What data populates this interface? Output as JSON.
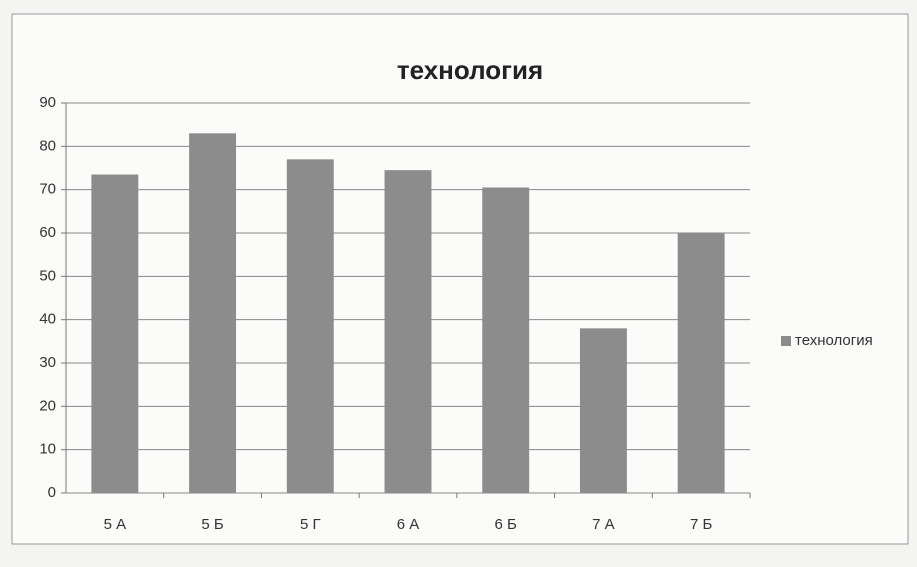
{
  "chart_data": {
    "type": "bar",
    "title": "технология",
    "categories": [
      "5 А",
      "5 Б",
      "5 Г",
      "6 А",
      "6 Б",
      "7 А",
      "7 Б"
    ],
    "series": [
      {
        "name": "технология",
        "color": "#8c8c8c",
        "values": [
          73.5,
          83,
          77,
          74.5,
          70.5,
          38,
          60
        ]
      }
    ],
    "ylim": [
      0,
      90
    ],
    "yticks": [
      0,
      10,
      20,
      30,
      40,
      50,
      60,
      70,
      80,
      90
    ],
    "grid": true,
    "legend": "right"
  }
}
